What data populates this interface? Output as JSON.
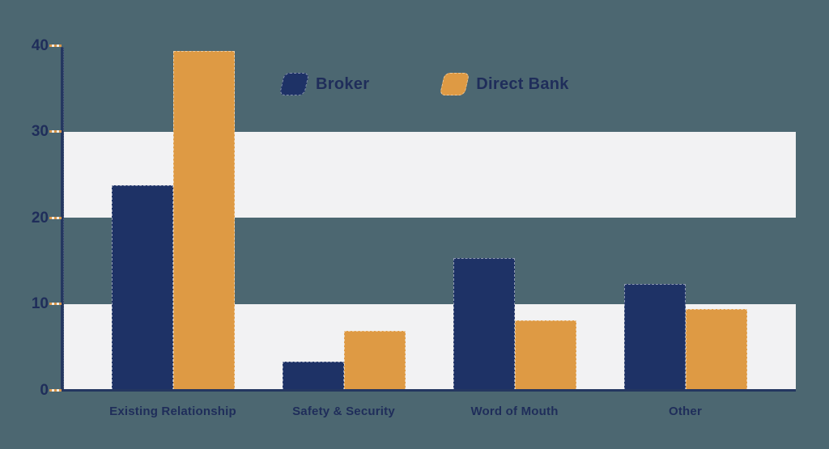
{
  "chart_data": {
    "type": "bar",
    "title": "",
    "xlabel": "",
    "ylabel": "",
    "categories": [
      "Existing Relationship",
      "Safety & Security",
      "Word of Mouth",
      "Other"
    ],
    "series": [
      {
        "name": "Broker",
        "color": "#1e3266",
        "values": [
          23.8,
          3.3,
          15.3,
          12.3
        ]
      },
      {
        "name": "Direct Bank",
        "color": "#de9a44",
        "values": [
          39.3,
          6.9,
          8.1,
          9.4
        ]
      }
    ],
    "ylim": [
      0,
      40
    ],
    "yticks": [
      0,
      10,
      20,
      30,
      40
    ],
    "legend": {
      "position": "top",
      "items": [
        "Broker",
        "Direct Bank"
      ]
    },
    "grid": {
      "type": "horizontal-bands",
      "bands": [
        [
          0,
          10
        ],
        [
          20,
          30
        ]
      ],
      "band_color": "#f2f2f3"
    }
  },
  "colors": {
    "background": "#4c6771",
    "broker": "#1e3266",
    "direct_bank": "#de9a44",
    "band": "#f2f2f3",
    "axis": "#243760",
    "label_text": "#1f2d5a",
    "tick_dash_orange": "#d8964a",
    "tick_dash_cream": "#f2ece2"
  }
}
